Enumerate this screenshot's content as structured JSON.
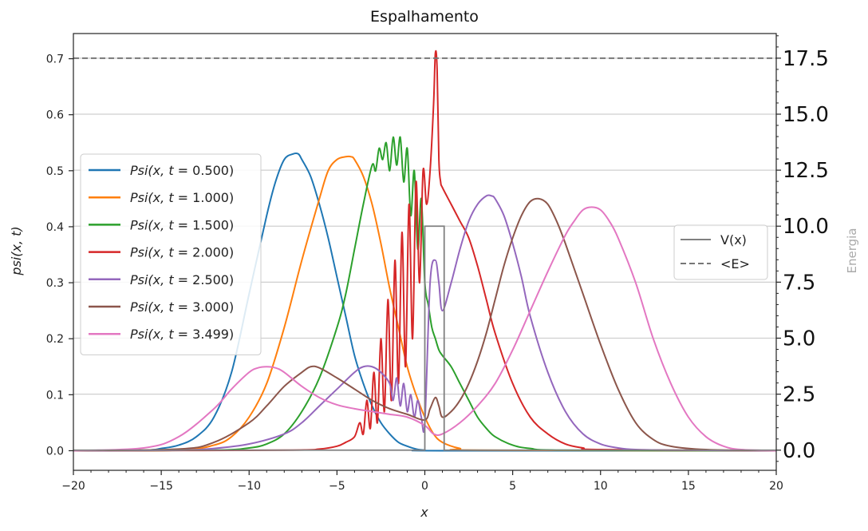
{
  "chart_data": {
    "type": "line",
    "title": "Espalhamento",
    "xlabel": "x",
    "ylabel": "psi(x, t)",
    "y2label": "Energia",
    "xlim": [
      -20,
      20
    ],
    "ylim": [
      -0.035,
      0.745
    ],
    "y2lim": [
      -0.9,
      18.6
    ],
    "x_ticks": [
      -20,
      -15,
      -10,
      -5,
      0,
      5,
      10,
      15,
      20
    ],
    "x_tick_labels": [
      "−20",
      "−15",
      "−10",
      "−5",
      "0",
      "5",
      "10",
      "15",
      "20"
    ],
    "y_ticks": [
      0.0,
      0.1,
      0.2,
      0.3,
      0.4,
      0.5,
      0.6,
      0.7
    ],
    "y_tick_labels": [
      "0.0",
      "0.1",
      "0.2",
      "0.3",
      "0.4",
      "0.5",
      "0.6",
      "0.7"
    ],
    "y2_ticks": [
      0.0,
      2.5,
      5.0,
      7.5,
      10.0,
      12.5,
      15.0,
      17.5
    ],
    "y2_tick_labels": [
      "0.0",
      "2.5",
      "5.0",
      "7.5",
      "10.0",
      "12.5",
      "15.0",
      "17.5"
    ],
    "grid": "horizontal",
    "legend_left_placement": "center-left",
    "legend_right_placement": "center-right",
    "series": [
      {
        "name": "Psi(x, t = 0.500)",
        "label_parts": [
          "Psi(x,",
          "t",
          " = 0.500)"
        ],
        "color": "#1f77b4",
        "x": [
          -20,
          -16,
          -15,
          -14,
          -13,
          -12,
          -11,
          -10,
          -9,
          -8.5,
          -8,
          -7.5,
          -7.2,
          -7,
          -6.5,
          -6,
          -5.5,
          -5,
          -4.5,
          -4,
          -3.5,
          -3,
          -2.5,
          -2,
          -1.5,
          -1,
          -0.5,
          0,
          1,
          20
        ],
        "y": [
          0,
          0.001,
          0.004,
          0.01,
          0.025,
          0.06,
          0.14,
          0.28,
          0.42,
          0.48,
          0.52,
          0.53,
          0.53,
          0.52,
          0.49,
          0.44,
          0.38,
          0.31,
          0.24,
          0.17,
          0.12,
          0.08,
          0.05,
          0.03,
          0.015,
          0.008,
          0.003,
          0.001,
          0,
          0
        ]
      },
      {
        "name": "Psi(x, t = 1.000)",
        "label_parts": [
          "Psi(x,",
          "t",
          " = 1.000)"
        ],
        "color": "#ff7f0e",
        "x": [
          -20,
          -14,
          -12,
          -11,
          -10,
          -9,
          -8,
          -7,
          -6,
          -5.5,
          -5,
          -4.5,
          -4.2,
          -4,
          -3.5,
          -3,
          -2.5,
          -2,
          -1.5,
          -1,
          -0.5,
          0,
          0.5,
          1,
          2,
          3,
          20
        ],
        "y": [
          0,
          0.001,
          0.01,
          0.025,
          0.06,
          0.12,
          0.22,
          0.34,
          0.45,
          0.5,
          0.52,
          0.525,
          0.525,
          0.52,
          0.49,
          0.44,
          0.37,
          0.29,
          0.22,
          0.15,
          0.1,
          0.06,
          0.03,
          0.015,
          0.004,
          0.001,
          0
        ]
      },
      {
        "name": "Psi(x, t = 1.500)",
        "label_parts": [
          "Psi(x,",
          "t",
          " = 1.500)"
        ],
        "color": "#2ca02c",
        "x": [
          -20,
          -12,
          -10,
          -9,
          -8,
          -7,
          -6,
          -5,
          -4.5,
          -4,
          -3.5,
          -3,
          -2.8,
          -2.6,
          -2.4,
          -2.2,
          -2,
          -1.8,
          -1.6,
          -1.4,
          -1.2,
          -1,
          -0.8,
          -0.6,
          -0.4,
          -0.2,
          0,
          0.2,
          0.4,
          0.6,
          0.8,
          1,
          1.5,
          2,
          2.5,
          3,
          3.5,
          4,
          5,
          6,
          8,
          20
        ],
        "y": [
          0,
          0.001,
          0.005,
          0.012,
          0.03,
          0.07,
          0.13,
          0.22,
          0.28,
          0.36,
          0.44,
          0.51,
          0.5,
          0.54,
          0.52,
          0.55,
          0.5,
          0.56,
          0.51,
          0.56,
          0.48,
          0.54,
          0.42,
          0.5,
          0.36,
          0.45,
          0.3,
          0.26,
          0.22,
          0.2,
          0.18,
          0.17,
          0.15,
          0.12,
          0.09,
          0.06,
          0.04,
          0.025,
          0.01,
          0.004,
          0.001,
          0
        ]
      },
      {
        "name": "Psi(x, t = 2.000)",
        "label_parts": [
          "Psi(x,",
          "t",
          " = 2.000)"
        ],
        "color": "#d62728",
        "x": [
          -20,
          -8,
          -6,
          -5,
          -4.5,
          -4,
          -3.7,
          -3.5,
          -3.3,
          -3.1,
          -2.9,
          -2.7,
          -2.5,
          -2.3,
          -2.1,
          -1.9,
          -1.7,
          -1.5,
          -1.3,
          -1.1,
          -0.9,
          -0.7,
          -0.5,
          -0.3,
          -0.1,
          0.1,
          0.3,
          0.5,
          0.6,
          0.7,
          0.8,
          0.9,
          1,
          1.5,
          2,
          2.5,
          3,
          3.5,
          4,
          5,
          6,
          7,
          8,
          9,
          10,
          20
        ],
        "y": [
          0,
          0.001,
          0.003,
          0.008,
          0.015,
          0.025,
          0.05,
          0.03,
          0.09,
          0.04,
          0.14,
          0.05,
          0.2,
          0.07,
          0.27,
          0.09,
          0.34,
          0.12,
          0.39,
          0.15,
          0.44,
          0.2,
          0.48,
          0.3,
          0.5,
          0.44,
          0.5,
          0.62,
          0.71,
          0.68,
          0.52,
          0.48,
          0.47,
          0.44,
          0.41,
          0.38,
          0.33,
          0.27,
          0.21,
          0.12,
          0.06,
          0.03,
          0.012,
          0.005,
          0.002,
          0
        ]
      },
      {
        "name": "Psi(x, t = 2.500)",
        "label_parts": [
          "Psi(x,",
          "t",
          " = 2.500)"
        ],
        "color": "#9467bd",
        "x": [
          -20,
          -14,
          -12,
          -10,
          -8,
          -7,
          -6,
          -5,
          -4,
          -3.5,
          -3,
          -2.5,
          -2,
          -1.8,
          -1.6,
          -1.4,
          -1.2,
          -1,
          -0.8,
          -0.6,
          -0.4,
          -0.2,
          0,
          0.3,
          0.6,
          0.8,
          1,
          1.5,
          2,
          2.5,
          3,
          3.5,
          3.8,
          4,
          4.5,
          5,
          5.5,
          6,
          7,
          8,
          9,
          10,
          11,
          12,
          14,
          20
        ],
        "y": [
          0,
          0.001,
          0.004,
          0.012,
          0.03,
          0.05,
          0.08,
          0.11,
          0.14,
          0.15,
          0.15,
          0.14,
          0.12,
          0.09,
          0.13,
          0.08,
          0.12,
          0.07,
          0.1,
          0.06,
          0.09,
          0.06,
          0.05,
          0.3,
          0.34,
          0.3,
          0.25,
          0.3,
          0.36,
          0.41,
          0.44,
          0.455,
          0.455,
          0.45,
          0.42,
          0.37,
          0.31,
          0.24,
          0.14,
          0.07,
          0.03,
          0.012,
          0.005,
          0.002,
          0.001,
          0
        ]
      },
      {
        "name": "Psi(x, t = 3.000)",
        "label_parts": [
          "Psi(x,",
          "t",
          " = 3.000)"
        ],
        "color": "#8c564b",
        "x": [
          -20,
          -14,
          -12,
          -10,
          -9,
          -8,
          -7,
          -6.5,
          -6,
          -5,
          -4,
          -3,
          -2,
          -1,
          0,
          0.3,
          0.6,
          0.8,
          1,
          1.5,
          2,
          2.5,
          3,
          3.5,
          4,
          4.5,
          5,
          5.5,
          6,
          6.5,
          7,
          7.5,
          8,
          9,
          10,
          11,
          12,
          13,
          14,
          16,
          20
        ],
        "y": [
          0,
          0.003,
          0.015,
          0.05,
          0.08,
          0.115,
          0.14,
          0.15,
          0.148,
          0.13,
          0.11,
          0.09,
          0.075,
          0.065,
          0.055,
          0.075,
          0.095,
          0.08,
          0.06,
          0.07,
          0.09,
          0.12,
          0.16,
          0.21,
          0.27,
          0.33,
          0.38,
          0.42,
          0.445,
          0.45,
          0.44,
          0.41,
          0.37,
          0.28,
          0.19,
          0.11,
          0.05,
          0.02,
          0.008,
          0.002,
          0
        ]
      },
      {
        "name": "Psi(x, t = 3.499)",
        "label_parts": [
          "Psi(x,",
          "t",
          " = 3.499)"
        ],
        "color": "#e377c2",
        "x": [
          -20,
          -16,
          -14,
          -12,
          -11,
          -10,
          -9.5,
          -9,
          -8.5,
          -8,
          -7,
          -6,
          -5,
          -4,
          -3,
          -2,
          -1,
          0,
          0.5,
          1,
          2,
          3,
          4,
          5,
          6,
          7,
          8,
          8.5,
          9,
          9.5,
          10,
          10.5,
          11,
          12,
          13,
          14,
          15,
          16,
          17,
          18,
          20
        ],
        "y": [
          0,
          0.005,
          0.025,
          0.075,
          0.11,
          0.14,
          0.148,
          0.15,
          0.148,
          0.14,
          0.115,
          0.095,
          0.082,
          0.075,
          0.07,
          0.065,
          0.06,
          0.045,
          0.03,
          0.03,
          0.05,
          0.08,
          0.12,
          0.18,
          0.25,
          0.32,
          0.385,
          0.41,
          0.43,
          0.435,
          0.43,
          0.41,
          0.38,
          0.3,
          0.2,
          0.12,
          0.06,
          0.025,
          0.008,
          0.002,
          0
        ]
      }
    ],
    "potential": {
      "name": "V(x)",
      "color": "#808080",
      "style": "solid",
      "axis": "right",
      "x": [
        -20,
        0,
        0,
        1.1,
        1.1,
        20
      ],
      "y": [
        0,
        0,
        10,
        10,
        0,
        0
      ]
    },
    "energy": {
      "name": "<E>",
      "color": "#777777",
      "style": "dashed",
      "axis": "right",
      "value": 17.5
    }
  }
}
